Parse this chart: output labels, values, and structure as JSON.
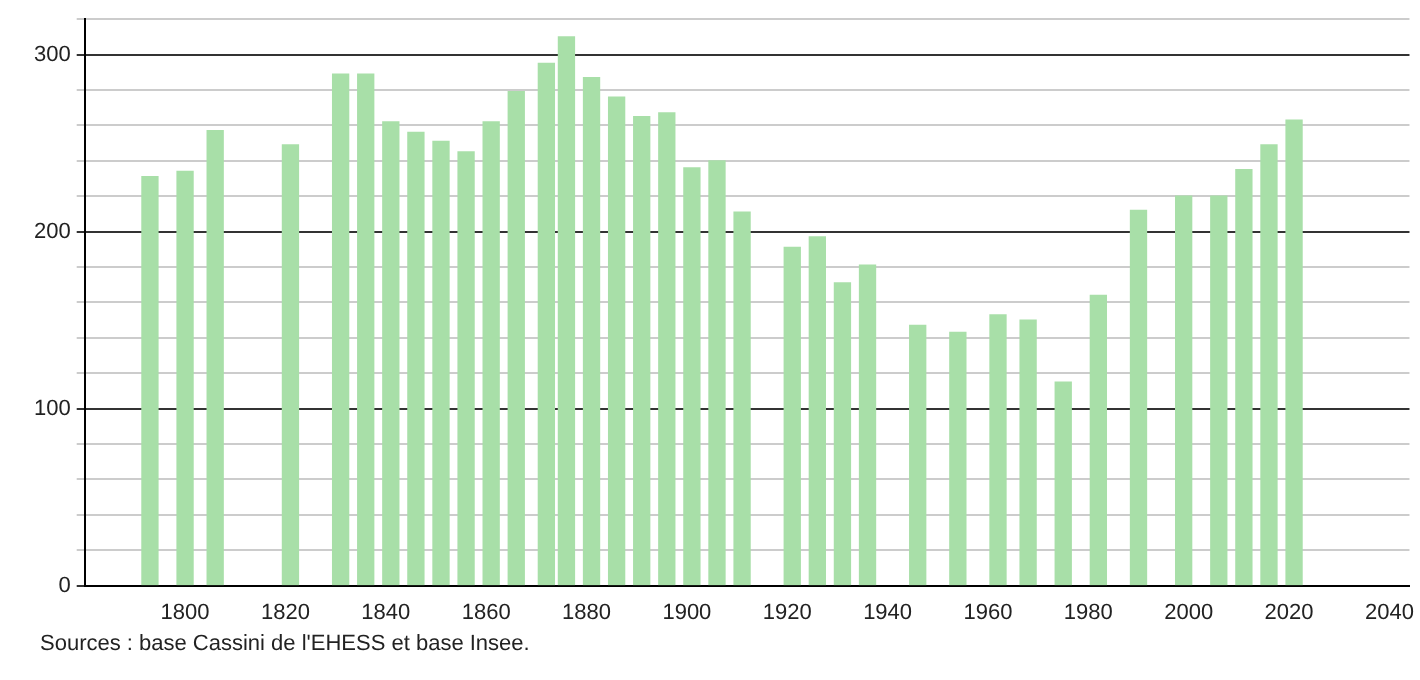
{
  "chart_data": {
    "type": "bar",
    "x": [
      1793,
      1800,
      1806,
      1821,
      1831,
      1836,
      1841,
      1846,
      1851,
      1856,
      1861,
      1866,
      1872,
      1876,
      1881,
      1886,
      1891,
      1896,
      1901,
      1906,
      1911,
      1921,
      1926,
      1931,
      1936,
      1946,
      1954,
      1962,
      1968,
      1975,
      1982,
      1990,
      1999,
      2006,
      2011,
      2016,
      2021
    ],
    "values": [
      231,
      234,
      257,
      249,
      289,
      289,
      262,
      256,
      251,
      245,
      262,
      279,
      295,
      310,
      287,
      276,
      265,
      267,
      236,
      240,
      211,
      191,
      197,
      171,
      181,
      147,
      143,
      153,
      150,
      115,
      164,
      212,
      220,
      220,
      235,
      249,
      263
    ],
    "color": "#a8dfa8",
    "xlim": [
      1780,
      2044
    ],
    "xticks": [
      1800,
      1820,
      1840,
      1860,
      1880,
      1900,
      1920,
      1940,
      1960,
      1980,
      2000,
      2020,
      2040
    ],
    "ylim": [
      0,
      320
    ],
    "yticks": [
      0,
      {
        "value": 20,
        "label": null
      },
      {
        "value": 40,
        "label": null
      },
      {
        "value": 60,
        "label": null
      },
      {
        "value": 80,
        "label": null
      },
      100,
      {
        "value": 120,
        "label": null
      },
      {
        "value": 140,
        "label": null
      },
      {
        "value": 160,
        "label": null
      },
      {
        "value": 180,
        "label": null
      },
      200,
      {
        "value": 220,
        "label": null
      },
      {
        "value": 240,
        "label": null
      },
      {
        "value": 260,
        "label": null
      },
      {
        "value": 280,
        "label": null
      },
      300,
      {
        "value": 320,
        "label": null
      }
    ],
    "grid": "y",
    "annotations": [
      "Sources : base Cassini de l'EHESS et base Insee."
    ]
  }
}
